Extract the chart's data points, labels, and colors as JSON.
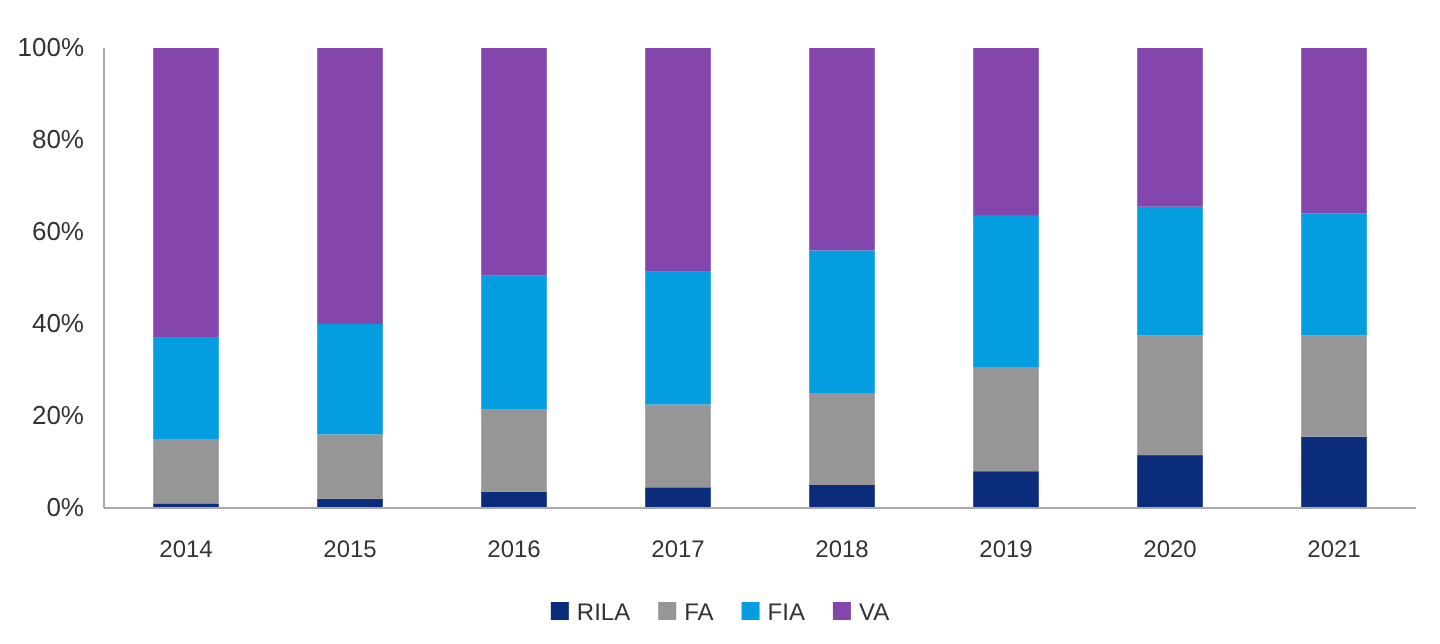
{
  "chart_data": {
    "type": "bar",
    "stacked": true,
    "categories": [
      "2014",
      "2015",
      "2016",
      "2017",
      "2018",
      "2019",
      "2020",
      "2021"
    ],
    "series": [
      {
        "name": "RILA",
        "color": "#0b2c7a",
        "values": [
          1,
          2,
          3.5,
          4.5,
          5,
          8,
          11.5,
          15.5
        ]
      },
      {
        "name": "FA",
        "color": "#969696",
        "values": [
          14,
          14,
          18,
          18,
          20,
          22.5,
          26,
          22
        ]
      },
      {
        "name": "FIA",
        "color": "#039de0",
        "values": [
          22,
          24,
          29,
          29,
          31,
          33,
          28,
          26.5
        ]
      },
      {
        "name": "VA",
        "color": "#8445ad",
        "values": [
          63,
          60,
          49.5,
          48.5,
          44,
          36.5,
          34.5,
          36
        ]
      }
    ],
    "ylim": [
      0,
      100
    ],
    "yticks": [
      {
        "value": 0,
        "label": "0%"
      },
      {
        "value": 20,
        "label": "20%"
      },
      {
        "value": 40,
        "label": "40%"
      },
      {
        "value": 60,
        "label": "60%"
      },
      {
        "value": 80,
        "label": "80%"
      },
      {
        "value": 100,
        "label": "100%"
      }
    ],
    "grid": false,
    "legend": "bottom"
  }
}
